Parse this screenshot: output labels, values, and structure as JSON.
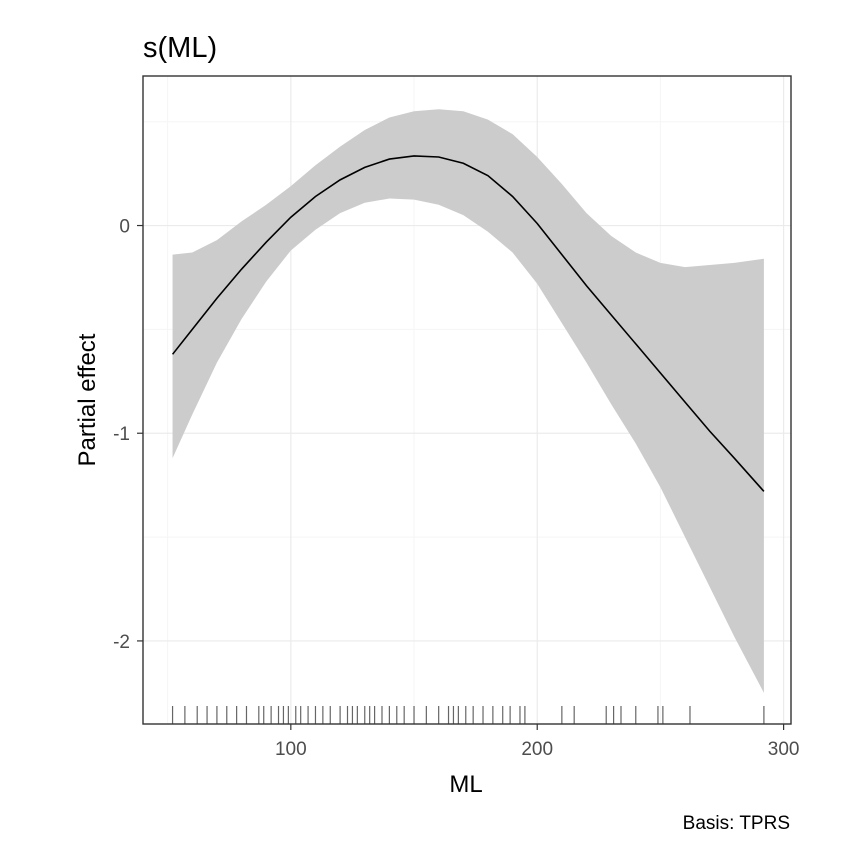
{
  "chart_data": {
    "type": "line",
    "title": "s(ML)",
    "xlabel": "ML",
    "ylabel": "Partial effect",
    "caption": "Basis: TPRS",
    "xlim": [
      40,
      303
    ],
    "ylim": [
      -2.4,
      0.72
    ],
    "x_ticks": [
      100,
      200,
      300
    ],
    "x_tick_labels": [
      "100",
      "200",
      "300"
    ],
    "y_ticks": [
      -2,
      -1,
      0
    ],
    "y_tick_labels": [
      "-2",
      "-1",
      "0"
    ],
    "x_minor_ticks": [
      50,
      150,
      250
    ],
    "y_minor_ticks": [
      -1.5,
      -0.5,
      0.5
    ],
    "grid": true,
    "series": [
      {
        "name": "estimate",
        "x": [
          52,
          60,
          70,
          80,
          90,
          100,
          110,
          120,
          130,
          140,
          150,
          160,
          170,
          180,
          190,
          200,
          210,
          220,
          230,
          240,
          250,
          260,
          270,
          280,
          292
        ],
        "y": [
          -0.62,
          -0.5,
          -0.35,
          -0.21,
          -0.08,
          0.04,
          0.14,
          0.22,
          0.28,
          0.32,
          0.335,
          0.33,
          0.3,
          0.24,
          0.14,
          0.01,
          -0.14,
          -0.29,
          -0.43,
          -0.57,
          -0.71,
          -0.85,
          -0.99,
          -1.12,
          -1.28
        ]
      },
      {
        "name": "upper",
        "x": [
          52,
          60,
          70,
          80,
          90,
          100,
          110,
          120,
          130,
          140,
          150,
          160,
          170,
          180,
          190,
          200,
          210,
          220,
          230,
          240,
          250,
          260,
          270,
          280,
          292
        ],
        "y": [
          -0.14,
          -0.13,
          -0.07,
          0.02,
          0.1,
          0.19,
          0.29,
          0.38,
          0.46,
          0.52,
          0.55,
          0.56,
          0.55,
          0.51,
          0.44,
          0.33,
          0.2,
          0.06,
          -0.05,
          -0.13,
          -0.18,
          -0.2,
          -0.19,
          -0.18,
          -0.16
        ]
      },
      {
        "name": "lower",
        "x": [
          52,
          60,
          70,
          80,
          90,
          100,
          110,
          120,
          130,
          140,
          150,
          160,
          170,
          180,
          190,
          200,
          210,
          220,
          230,
          240,
          250,
          260,
          270,
          280,
          292
        ],
        "y": [
          -1.12,
          -0.91,
          -0.66,
          -0.45,
          -0.27,
          -0.12,
          -0.02,
          0.06,
          0.11,
          0.13,
          0.125,
          0.1,
          0.05,
          -0.03,
          -0.13,
          -0.28,
          -0.47,
          -0.66,
          -0.86,
          -1.05,
          -1.26,
          -1.5,
          -1.74,
          -1.98,
          -2.25
        ]
      }
    ],
    "rug": [
      52,
      57,
      62,
      66,
      70,
      74,
      78,
      82,
      87,
      89,
      92,
      95,
      97,
      99,
      102,
      104,
      107,
      110,
      113,
      116,
      120,
      123,
      125,
      127,
      130,
      132,
      134,
      137,
      140,
      143,
      146,
      150,
      155,
      160,
      164,
      166,
      168,
      171,
      174,
      178,
      182,
      186,
      189,
      193,
      195,
      210,
      215,
      228,
      231,
      234,
      240,
      249,
      251,
      262,
      292
    ],
    "colors": {
      "ribbon": "#cccccc",
      "line": "#000000",
      "rug": "#000000",
      "grid_major": "#ebebeb",
      "grid_minor": "#f5f5f5",
      "panel_border": "#333333",
      "tick": "#333333"
    }
  }
}
